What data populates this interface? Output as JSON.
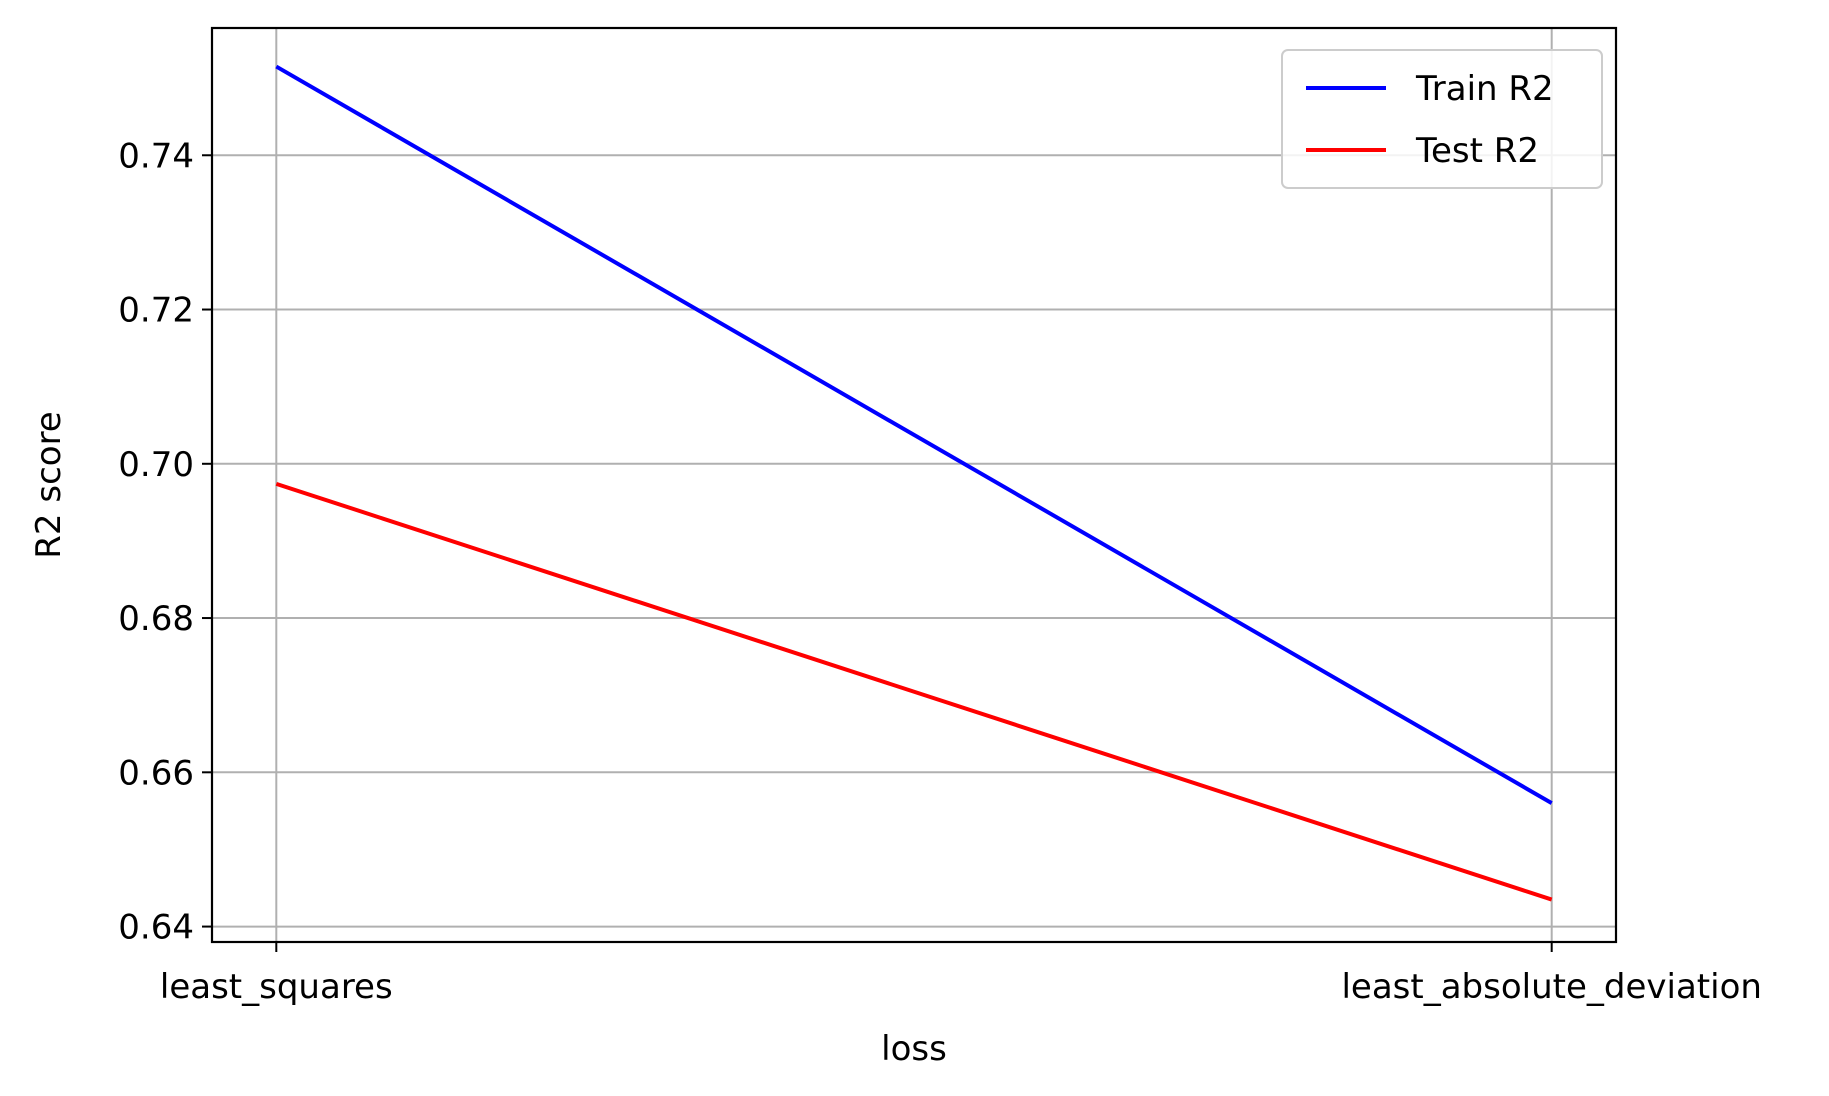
{
  "chart_data": {
    "type": "line",
    "title": "",
    "xlabel": "loss",
    "ylabel": "R2 score",
    "categories": [
      "least_squares",
      "least_absolute_deviation"
    ],
    "ylim": [
      0.638,
      0.7565
    ],
    "yticks": [
      0.64,
      0.66,
      0.68,
      0.7,
      0.72,
      0.74
    ],
    "ytick_labels": [
      "0.64",
      "0.66",
      "0.68",
      "0.70",
      "0.72",
      "0.74"
    ],
    "grid": true,
    "legend_position": "top-right",
    "series": [
      {
        "name": "Train R2",
        "color": "#0000ff",
        "values": [
          0.7515,
          0.656
        ]
      },
      {
        "name": "Test R2",
        "color": "#ff0000",
        "values": [
          0.6974,
          0.6435
        ]
      }
    ]
  }
}
